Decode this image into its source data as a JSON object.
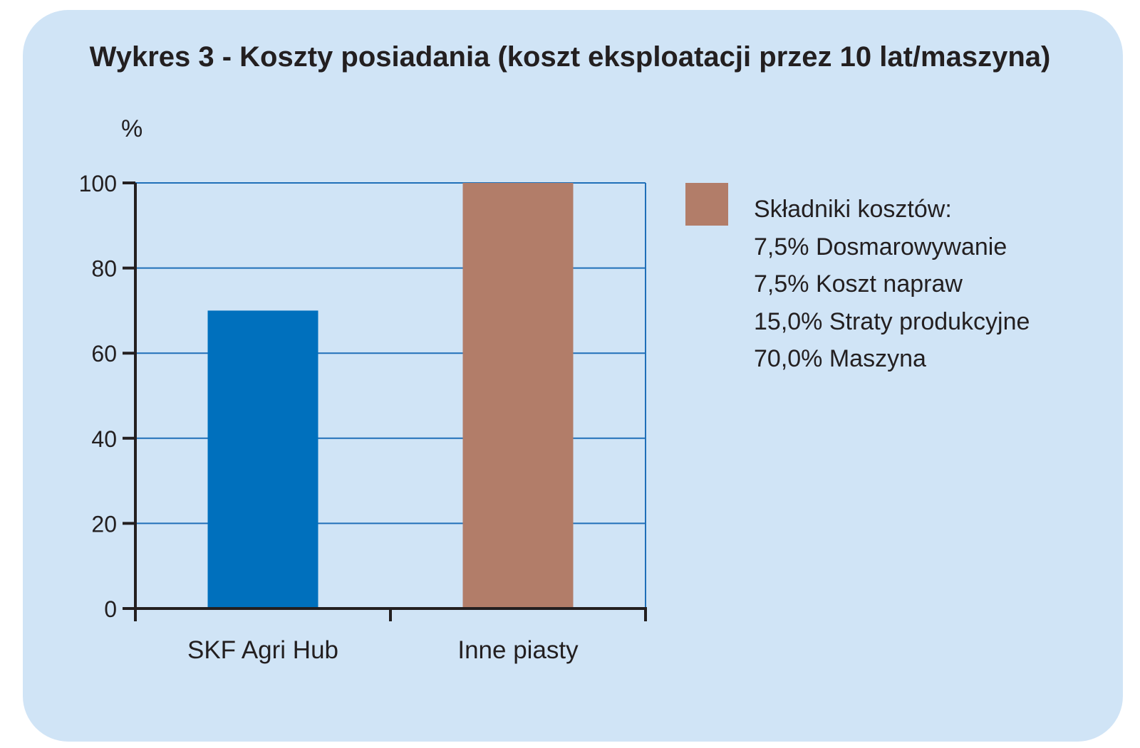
{
  "colors": {
    "background": "#d0e4f6",
    "grid": "#1f6fb8",
    "axis": "#231f20",
    "bar_skf": "#0070bd",
    "bar_other": "#b27d69",
    "text": "#231f20"
  },
  "legend": {
    "swatch_color": "#b27d69",
    "lines": [
      "Składniki kosztów:",
      "7,5% Dosmarowywanie",
      "7,5% Koszt napraw",
      "15,0% Straty produkcyjne",
      "70,0% Maszyna"
    ]
  },
  "chart_data": {
    "type": "bar",
    "title": "Wykres 3 - Koszty posiadania (koszt eksploatacji przez 10 lat/maszyna)",
    "ylabel": "%",
    "xlabel": "",
    "categories": [
      "SKF Agri Hub",
      "Inne piasty"
    ],
    "values": [
      70,
      100
    ],
    "bar_colors": [
      "#0070bd",
      "#b27d69"
    ],
    "ylim": [
      0,
      100
    ],
    "yticks": [
      0,
      20,
      40,
      60,
      80,
      100
    ],
    "grid": true,
    "legend_position": "right"
  }
}
